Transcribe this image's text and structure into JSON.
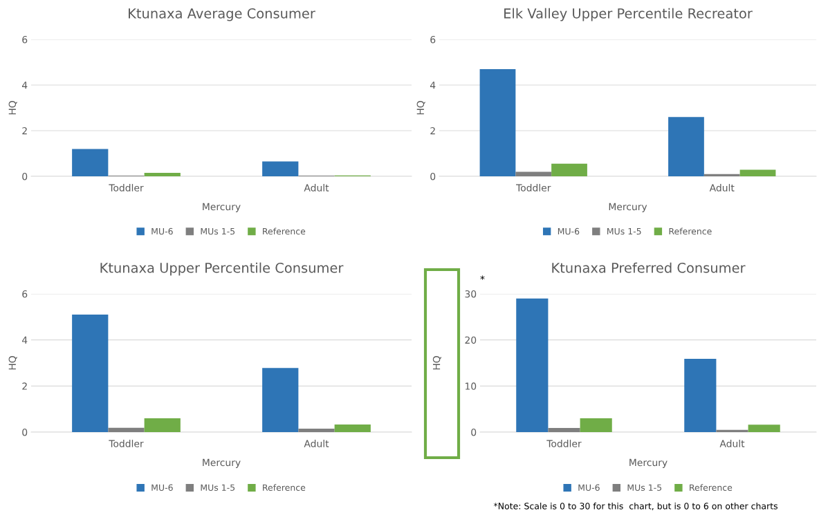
{
  "chart_data": [
    {
      "type": "bar",
      "title": "Ktunaxa Average Consumer",
      "xlabel": "Mercury",
      "ylabel": "HQ",
      "categories": [
        "Toddler",
        "Adult"
      ],
      "ylim": [
        0,
        6
      ],
      "yticks": [
        0,
        2,
        4,
        6
      ],
      "grid": "y",
      "legend": "bottom",
      "series": [
        {
          "name": "MU-6",
          "color": "#2e75b6",
          "values": [
            1.2,
            0.65
          ]
        },
        {
          "name": "MUs 1-5",
          "color": "#7f7f7f",
          "values": [
            0.03,
            0.03
          ]
        },
        {
          "name": "Reference",
          "color": "#70ad47",
          "values": [
            0.15,
            0.04
          ]
        }
      ]
    },
    {
      "type": "bar",
      "title": "Elk Valley Upper Percentile Recreator",
      "xlabel": "Mercury",
      "ylabel": "HQ",
      "categories": [
        "Toddler",
        "Adult"
      ],
      "ylim": [
        0,
        6
      ],
      "yticks": [
        0,
        2,
        4,
        6
      ],
      "grid": "y",
      "legend": "bottom",
      "series": [
        {
          "name": "MU-6",
          "color": "#2e75b6",
          "values": [
            4.7,
            2.6
          ]
        },
        {
          "name": "MUs 1-5",
          "color": "#7f7f7f",
          "values": [
            0.2,
            0.1
          ]
        },
        {
          "name": "Reference",
          "color": "#70ad47",
          "values": [
            0.55,
            0.29
          ]
        }
      ]
    },
    {
      "type": "bar",
      "title": "Ktunaxa Upper Percentile Consumer",
      "xlabel": "Mercury",
      "ylabel": "HQ",
      "categories": [
        "Toddler",
        "Adult"
      ],
      "ylim": [
        0,
        6
      ],
      "yticks": [
        0,
        2,
        4,
        6
      ],
      "grid": "y",
      "legend": "bottom",
      "series": [
        {
          "name": "MU-6",
          "color": "#2e75b6",
          "values": [
            5.1,
            2.78
          ]
        },
        {
          "name": "MUs 1-5",
          "color": "#7f7f7f",
          "values": [
            0.19,
            0.15
          ]
        },
        {
          "name": "Reference",
          "color": "#70ad47",
          "values": [
            0.6,
            0.33
          ]
        }
      ]
    },
    {
      "type": "bar",
      "title": "Ktunaxa Preferred Consumer",
      "xlabel": "Mercury",
      "ylabel": "HQ",
      "categories": [
        "Toddler",
        "Adult"
      ],
      "ylim": [
        0,
        30
      ],
      "yticks": [
        0,
        10,
        20,
        30
      ],
      "grid": "y",
      "legend": "bottom",
      "annotations": [
        "*",
        "*Note: Scale is 0 to 30 for this  chart, but is 0 to 6 on other charts"
      ],
      "series": [
        {
          "name": "MU-6",
          "color": "#2e75b6",
          "values": [
            29.0,
            15.9
          ]
        },
        {
          "name": "MUs 1-5",
          "color": "#7f7f7f",
          "values": [
            0.9,
            0.5
          ]
        },
        {
          "name": "Reference",
          "color": "#70ad47",
          "values": [
            3.0,
            1.6
          ]
        }
      ]
    }
  ]
}
